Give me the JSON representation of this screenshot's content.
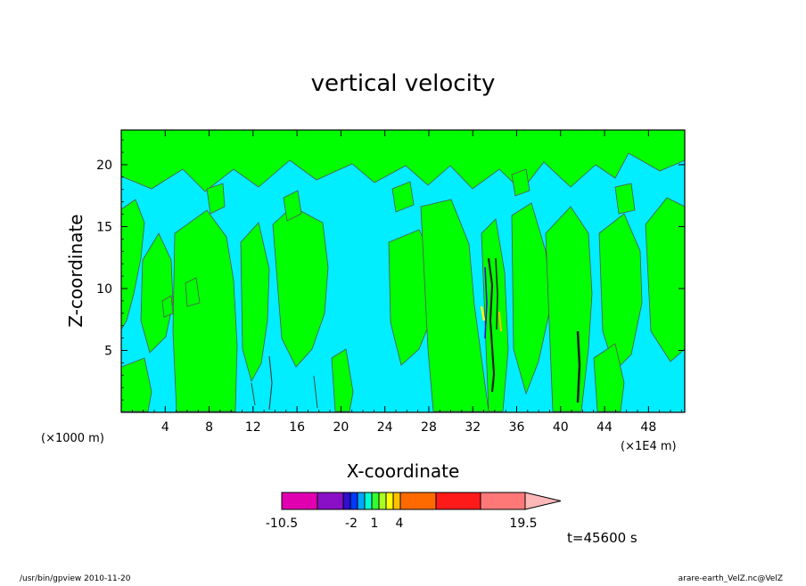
{
  "chart_data": {
    "type": "heatmap",
    "title": "vertical velocity",
    "xlabel": "X-coordinate",
    "ylabel": "Z-coordinate",
    "x_unit": "(×1000 m)",
    "x_unit_right": "(×1E4 m)",
    "xlim": [
      0,
      51.3
    ],
    "ylim": [
      0,
      22.8
    ],
    "x_ticks": [
      "4",
      "8",
      "12",
      "16",
      "20",
      "24",
      "28",
      "32",
      "36",
      "40",
      "44",
      "48"
    ],
    "y_ticks": [
      "5",
      "10",
      "15",
      "20"
    ],
    "colorbar": {
      "labels": [
        "-10.5",
        "-2",
        "1",
        "4",
        "19.5"
      ],
      "colors": [
        "#e000b0",
        "#8a10c8",
        "#3010d0",
        "#0038ff",
        "#00a8ff",
        "#00ffd0",
        "#33ff33",
        "#aaff22",
        "#ffff00",
        "#ffc000",
        "#ff6a00",
        "#ff1a1a",
        "#ff7878",
        "#ffb8b8"
      ]
    },
    "dominant_colors": {
      "positive": "#00ff00",
      "negative": "#00eeff"
    },
    "time_label": "t=45600 s",
    "footer_left": "/usr/bin/gpview  2010-11-20",
    "footer_right": "arare-earth_VelZ.nc@VelZ"
  }
}
